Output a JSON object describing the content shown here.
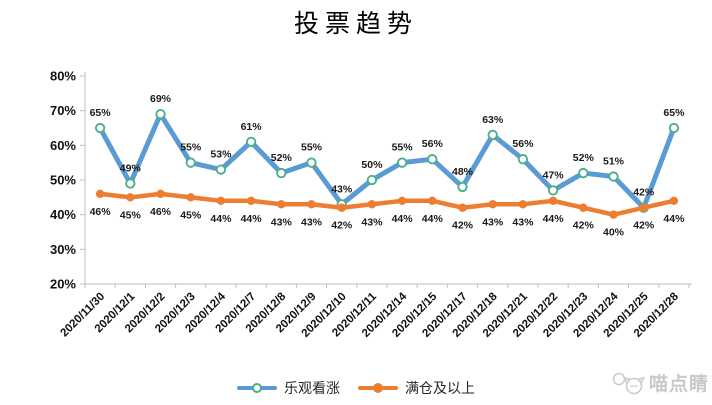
{
  "title": "投票趋势",
  "watermark": {
    "text": "喵点睛"
  },
  "chart_data": {
    "type": "line",
    "title": "投票趋势",
    "categories": [
      "2020/11/30",
      "2020/12/1",
      "2020/12/2",
      "2020/12/3",
      "2020/12/4",
      "2020/12/7",
      "2020/12/8",
      "2020/12/9",
      "2020/12/10",
      "2020/12/11",
      "2020/12/14",
      "2020/12/15",
      "2020/12/17",
      "2020/12/18",
      "2020/12/21",
      "2020/12/22",
      "2020/12/23",
      "2020/12/24",
      "2020/12/25",
      "2020/12/28"
    ],
    "series": [
      {
        "name": "乐观看涨",
        "color": "#5B9BD5",
        "marker": "open-circle",
        "marker_color": "#4CB08C",
        "line_width": 5,
        "label_position": "above",
        "values": [
          65,
          49,
          69,
          55,
          53,
          61,
          52,
          55,
          43,
          50,
          55,
          56,
          48,
          63,
          56,
          47,
          52,
          51,
          42,
          65
        ]
      },
      {
        "name": "满仓及以上",
        "color": "#ED7D31",
        "marker": "filled-circle",
        "marker_color": "#ED7D31",
        "line_width": 4.5,
        "label_position": "below",
        "values": [
          46,
          45,
          46,
          45,
          44,
          44,
          43,
          43,
          42,
          43,
          44,
          44,
          42,
          43,
          43,
          44,
          42,
          40,
          42,
          44
        ]
      }
    ],
    "label_suffix": "%",
    "ylim": [
      20,
      80
    ],
    "y_ticks": [
      20,
      30,
      40,
      50,
      60,
      70,
      80
    ],
    "y_tick_labels": [
      "20%",
      "30%",
      "40%",
      "50%",
      "60%",
      "70%",
      "80%"
    ],
    "grid": false,
    "legend_position": "bottom",
    "axis_color": "#BFBFBF",
    "label_color": "#1A1A1A"
  }
}
